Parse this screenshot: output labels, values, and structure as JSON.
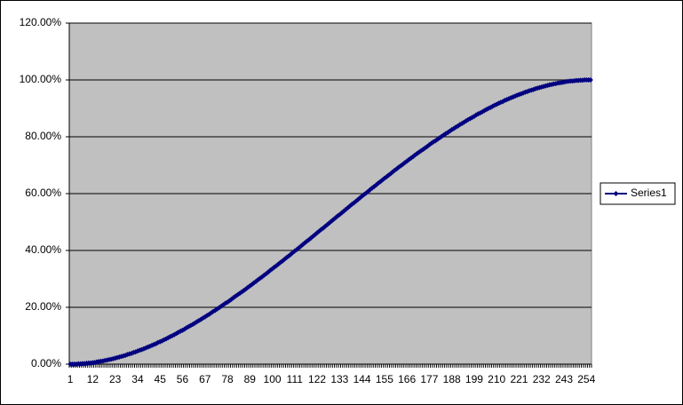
{
  "chart_data": {
    "type": "line",
    "legend": "right",
    "grid": true,
    "background": "#c0c0c0",
    "ylim": [
      0,
      120
    ],
    "yticks": [
      {
        "value": 0,
        "label": "0.00%"
      },
      {
        "value": 20,
        "label": "20.00%"
      },
      {
        "value": 40,
        "label": "40.00%"
      },
      {
        "value": 60,
        "label": "60.00%"
      },
      {
        "value": 80,
        "label": "80.00%"
      },
      {
        "value": 100,
        "label": "100.00%"
      },
      {
        "value": 120,
        "label": "120.00%"
      }
    ],
    "categories": [
      "1",
      null,
      null,
      null,
      null,
      null,
      null,
      null,
      null,
      null,
      null,
      "12",
      null,
      null,
      null,
      null,
      null,
      null,
      null,
      null,
      null,
      null,
      "23",
      null,
      null,
      null,
      null,
      null,
      null,
      null,
      null,
      null,
      null,
      "34",
      null,
      null,
      null,
      null,
      null,
      null,
      null,
      null,
      null,
      null,
      "45",
      null,
      null,
      null,
      null,
      null,
      null,
      null,
      null,
      null,
      null,
      "56",
      null,
      null,
      null,
      null,
      null,
      null,
      null,
      null,
      null,
      null,
      "67",
      null,
      null,
      null,
      null,
      null,
      null,
      null,
      null,
      null,
      null,
      "78",
      null,
      null,
      null,
      null,
      null,
      null,
      null,
      null,
      null,
      null,
      "89",
      null,
      null,
      null,
      null,
      null,
      null,
      null,
      null,
      null,
      null,
      "100",
      null,
      null,
      null,
      null,
      null,
      null,
      null,
      null,
      null,
      null,
      "111",
      null,
      null,
      null,
      null,
      null,
      null,
      null,
      null,
      null,
      null,
      "122",
      null,
      null,
      null,
      null,
      null,
      null,
      null,
      null,
      null,
      null,
      "133",
      null,
      null,
      null,
      null,
      null,
      null,
      null,
      null,
      null,
      null,
      "144",
      null,
      null,
      null,
      null,
      null,
      null,
      null,
      null,
      null,
      null,
      "155",
      null,
      null,
      null,
      null,
      null,
      null,
      null,
      null,
      null,
      null,
      "166",
      null,
      null,
      null,
      null,
      null,
      null,
      null,
      null,
      null,
      null,
      "177",
      null,
      null,
      null,
      null,
      null,
      null,
      null,
      null,
      null,
      null,
      "188",
      null,
      null,
      null,
      null,
      null,
      null,
      null,
      null,
      null,
      null,
      "199",
      null,
      null,
      null,
      null,
      null,
      null,
      null,
      null,
      null,
      null,
      "210",
      null,
      null,
      null,
      null,
      null,
      null,
      null,
      null,
      null,
      null,
      "221",
      null,
      null,
      null,
      null,
      null,
      null,
      null,
      null,
      null,
      null,
      "232",
      null,
      null,
      null,
      null,
      null,
      null,
      null,
      null,
      null,
      null,
      "243",
      null,
      null,
      null,
      null,
      null,
      null,
      null,
      null,
      null,
      null,
      "254",
      null,
      null
    ],
    "series": [
      {
        "name": "Series1",
        "color": "#000080",
        "values": [
          0,
          0,
          0,
          0,
          0.1,
          0.1,
          0.2,
          0.2,
          0.3,
          0.4,
          0.4,
          0.5,
          0.6,
          0.8,
          0.9,
          1.0,
          1.1,
          1.3,
          1.4,
          1.6,
          1.7,
          1.9,
          2.1,
          2.3,
          2.5,
          2.7,
          2.9,
          3.1,
          3.4,
          3.6,
          3.8,
          4.1,
          4.3,
          4.6,
          4.9,
          5.1,
          5.4,
          5.7,
          6.0,
          6.3,
          6.6,
          6.9,
          7.2,
          7.6,
          7.9,
          8.2,
          8.6,
          8.9,
          9.3,
          9.7,
          10.0,
          10.4,
          10.8,
          11.2,
          11.6,
          11.9,
          12.3,
          12.8,
          13.2,
          13.6,
          14.0,
          14.4,
          14.9,
          15.3,
          15.7,
          16.2,
          16.6,
          17.1,
          17.5,
          18.0,
          18.5,
          18.9,
          19.4,
          19.9,
          20.4,
          20.9,
          21.4,
          21.8,
          22.3,
          22.8,
          23.4,
          23.9,
          24.4,
          24.9,
          25.4,
          25.9,
          26.4,
          27.0,
          27.5,
          28.0,
          28.6,
          29.1,
          29.7,
          30.2,
          30.7,
          31.3,
          31.8,
          32.4,
          33.0,
          33.5,
          34.1,
          34.6,
          35.2,
          35.8,
          36.3,
          36.9,
          37.5,
          38.0,
          38.6,
          39.2,
          39.8,
          40.3,
          40.9,
          41.5,
          42.1,
          42.7,
          43.3,
          43.8,
          44.4,
          45.0,
          45.6,
          46.2,
          46.8,
          47.4,
          47.9,
          48.5,
          49.1,
          49.7,
          50.3,
          50.9,
          51.5,
          52.1,
          52.6,
          53.2,
          53.8,
          54.4,
          55.0,
          55.6,
          56.2,
          56.7,
          57.3,
          57.9,
          58.5,
          59.1,
          59.7,
          60.2,
          60.8,
          61.4,
          62.0,
          62.5,
          63.1,
          63.7,
          64.2,
          64.8,
          65.4,
          65.9,
          66.5,
          67.0,
          67.6,
          68.2,
          68.7,
          69.3,
          69.8,
          70.3,
          70.9,
          71.4,
          72.0,
          72.5,
          73.0,
          73.6,
          74.1,
          74.6,
          75.1,
          75.6,
          76.1,
          76.6,
          77.2,
          77.7,
          78.2,
          78.6,
          79.1,
          79.6,
          80.1,
          80.6,
          81.1,
          81.5,
          82.0,
          82.5,
          82.9,
          83.4,
          83.8,
          84.3,
          84.7,
          85.1,
          85.6,
          86.0,
          86.4,
          86.8,
          87.2,
          87.7,
          88.1,
          88.4,
          88.8,
          89.2,
          89.6,
          90.0,
          90.3,
          90.7,
          91.1,
          91.4,
          91.8,
          92.1,
          92.4,
          92.8,
          93.1,
          93.4,
          93.7,
          94.0,
          94.3,
          94.6,
          94.9,
          95.1,
          95.4,
          95.7,
          95.9,
          96.2,
          96.4,
          96.6,
          96.9,
          97.1,
          97.3,
          97.5,
          97.7,
          97.9,
          98.1,
          98.3,
          98.4,
          98.6,
          98.7,
          98.9,
          99.0,
          99.1,
          99.2,
          99.4,
          99.5,
          99.6,
          99.6,
          99.7,
          99.8,
          99.8,
          99.9,
          99.9,
          100,
          100,
          100,
          100
        ]
      }
    ]
  }
}
